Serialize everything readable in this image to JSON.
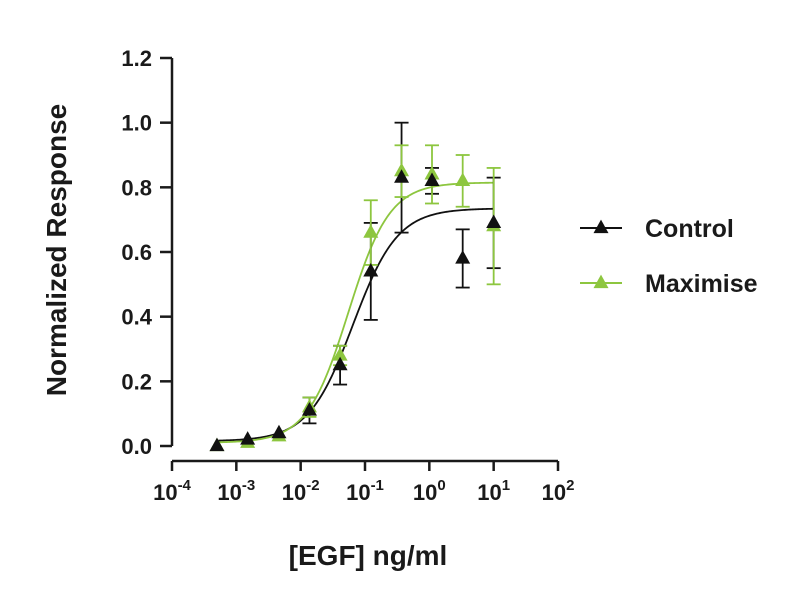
{
  "chart_data": {
    "type": "scatter",
    "ylabel": "Normalized Response",
    "xlabel": "[EGF] ng/ml",
    "x_scale": "log",
    "xlim": [
      0.0001,
      100
    ],
    "ylim": [
      0,
      1.2
    ],
    "y_ticks": [
      "0.0",
      "0.2",
      "0.4",
      "0.6",
      "0.8",
      "1.0",
      "1.2"
    ],
    "x_ticks": [
      {
        "base": "10",
        "exp": "-4"
      },
      {
        "base": "10",
        "exp": "-3"
      },
      {
        "base": "10",
        "exp": "-2"
      },
      {
        "base": "10",
        "exp": "-1"
      },
      {
        "base": "10",
        "exp": "0"
      },
      {
        "base": "10",
        "exp": "1"
      },
      {
        "base": "10",
        "exp": "2"
      }
    ],
    "x_tick_values": [
      0.0001,
      0.001,
      0.01,
      0.1,
      1,
      10,
      100
    ],
    "legend_position": "right",
    "series": [
      {
        "name": "Control",
        "color": "#111111",
        "marker": "triangle",
        "x": [
          0.0005,
          0.0015,
          0.0046,
          0.0137,
          0.041,
          0.123,
          0.37,
          1.1,
          3.3,
          10
        ],
        "y": [
          0.0,
          0.02,
          0.04,
          0.11,
          0.25,
          0.54,
          0.83,
          0.82,
          0.58,
          0.69
        ],
        "err": [
          0,
          0,
          0,
          0.04,
          0.06,
          0.15,
          0.17,
          0.04,
          0.09,
          0.14
        ],
        "fit": {
          "bottom": 0.015,
          "top": 0.735,
          "ec50": 0.065,
          "hill": 1.25
        }
      },
      {
        "name": "Maximise",
        "color": "#8dc63f",
        "marker": "triangle",
        "x": [
          0.0005,
          0.0015,
          0.0046,
          0.0137,
          0.041,
          0.123,
          0.37,
          1.1,
          3.3,
          10
        ],
        "y": [
          0.0,
          0.01,
          0.03,
          0.12,
          0.28,
          0.66,
          0.85,
          0.84,
          0.82,
          0.68
        ],
        "err": [
          0,
          0,
          0,
          0.03,
          0.03,
          0.1,
          0.08,
          0.09,
          0.08,
          0.18
        ],
        "fit": {
          "bottom": 0.01,
          "top": 0.815,
          "ec50": 0.055,
          "hill": 1.35
        }
      }
    ]
  }
}
